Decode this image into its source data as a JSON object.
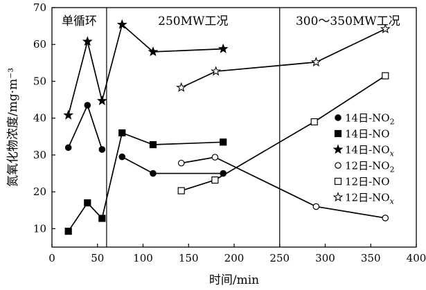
{
  "chart_data": {
    "type": "line",
    "xlabel": "时间/min",
    "ylabel": "氮氧化物浓度/mg·m⁻³",
    "xlim": [
      0,
      400
    ],
    "ylim": [
      5,
      70
    ],
    "xticks": [
      0,
      50,
      100,
      150,
      200,
      250,
      300,
      350,
      400
    ],
    "yticks": [
      10,
      20,
      30,
      40,
      50,
      60,
      70
    ],
    "grid": false,
    "legend_position": "right",
    "dividers": [
      60,
      250
    ],
    "regions": [
      {
        "label": "单循环",
        "x": 30
      },
      {
        "label": "250MW工况",
        "x": 155
      },
      {
        "label": "300～350MW工况",
        "x": 325
      }
    ],
    "series": [
      {
        "name_main": "14日-NO",
        "name_sub": "2",
        "sub_style": "subscript",
        "marker": "circle",
        "filled": true,
        "segments": [
          [
            [
              18,
              32
            ],
            [
              39,
              43.5
            ],
            [
              55,
              31.5
            ]
          ],
          [
            [
              77,
              29.5
            ],
            [
              111,
              25
            ],
            [
              188,
              25
            ]
          ]
        ]
      },
      {
        "name_main": "14日-NO",
        "name_sub": "",
        "sub_style": "none",
        "marker": "square",
        "filled": true,
        "segments": [
          [
            [
              18,
              9.3
            ],
            [
              39,
              17
            ],
            [
              55,
              12.8
            ],
            [
              77,
              36
            ],
            [
              111,
              32.8
            ],
            [
              188,
              33.5
            ]
          ]
        ]
      },
      {
        "name_main": "14日-NO",
        "name_sub": "x",
        "sub_style": "italic-subscript",
        "marker": "star",
        "filled": true,
        "segments": [
          [
            [
              18,
              40.8
            ],
            [
              39,
              60.8
            ],
            [
              55,
              44.7
            ],
            [
              77,
              65.4
            ],
            [
              111,
              58
            ],
            [
              188,
              58.8
            ]
          ]
        ]
      },
      {
        "name_main": "12日-NO",
        "name_sub": "2",
        "sub_style": "subscript",
        "marker": "circle",
        "filled": false,
        "segments": [
          [
            [
              142,
              27.8
            ],
            [
              179,
              29.4
            ],
            [
              290,
              16
            ],
            [
              366,
              12.9
            ]
          ]
        ]
      },
      {
        "name_main": "12日-NO",
        "name_sub": "",
        "sub_style": "none",
        "marker": "square",
        "filled": false,
        "segments": [
          [
            [
              142,
              20.3
            ],
            [
              179,
              23.2
            ],
            [
              288,
              39
            ],
            [
              366,
              51.5
            ]
          ]
        ]
      },
      {
        "name_main": "12日-NO",
        "name_sub": "x",
        "sub_style": "italic-subscript",
        "marker": "star",
        "filled": false,
        "segments": [
          [
            [
              142,
              48.3
            ],
            [
              180,
              52.7
            ],
            [
              290,
              55.2
            ],
            [
              366,
              64.2
            ]
          ]
        ]
      }
    ]
  }
}
